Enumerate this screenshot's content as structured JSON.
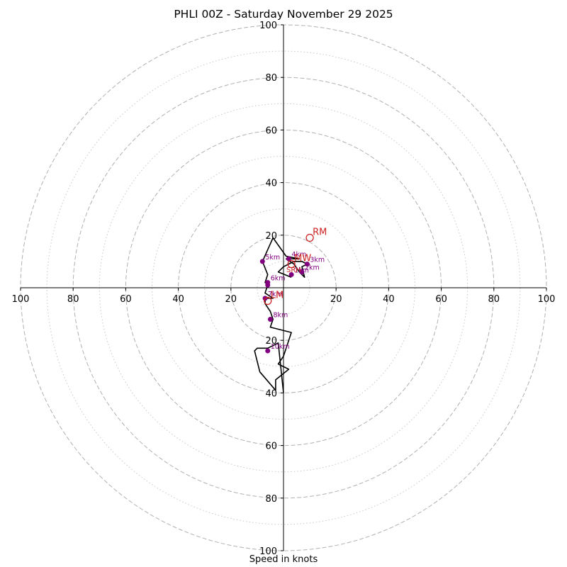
{
  "chart_data": {
    "type": "hodograph",
    "title": "PHLI 00Z - Saturday November 29 2025",
    "xlabel": "Speed in knots",
    "range": 100,
    "colors": {
      "trace": "#000000",
      "height_marker": "#800080",
      "motion": "#cc2222",
      "ring_major": "#b0b0b0",
      "ring_minor": "#c8c8c8"
    },
    "rings_major": [
      20,
      40,
      60,
      80,
      100
    ],
    "rings_minor": [
      10,
      30,
      50,
      70,
      90
    ],
    "x_tick_labels": [
      "100",
      "80",
      "60",
      "40",
      "20",
      "20",
      "40",
      "60",
      "80",
      "100"
    ],
    "y_tick_labels": [
      "100",
      "80",
      "60",
      "40",
      "20",
      "20",
      "40",
      "60",
      "80",
      "100"
    ],
    "x_tick_values": [
      -100,
      -80,
      -60,
      -40,
      -20,
      20,
      40,
      60,
      80,
      100
    ],
    "y_tick_values": [
      100,
      80,
      60,
      40,
      20,
      -20,
      -40,
      -60,
      -80,
      -100
    ],
    "hodograph_trace": [
      {
        "u": 3,
        "v": 4
      },
      {
        "u": -2,
        "v": 6
      },
      {
        "u": 0,
        "v": 8
      },
      {
        "u": 4,
        "v": 10
      },
      {
        "u": 7,
        "v": 10
      },
      {
        "u": 9,
        "v": 9
      },
      {
        "u": 7,
        "v": 8
      },
      {
        "u": 8,
        "v": 4
      },
      {
        "u": 6,
        "v": 6
      },
      {
        "u": 4,
        "v": 9
      },
      {
        "u": 1,
        "v": 11
      },
      {
        "u": 6,
        "v": 11
      },
      {
        "u": 1,
        "v": 12
      },
      {
        "u": -4,
        "v": 19
      },
      {
        "u": -8,
        "v": 10
      },
      {
        "u": -6,
        "v": 5
      },
      {
        "u": -7,
        "v": 2
      },
      {
        "u": -6,
        "v": 1
      },
      {
        "u": -7,
        "v": -2
      },
      {
        "u": -4,
        "v": -4
      },
      {
        "u": -6,
        "v": -4
      },
      {
        "u": -7,
        "v": -4
      },
      {
        "u": -7,
        "v": -6
      },
      {
        "u": -5,
        "v": -9
      },
      {
        "u": -4,
        "v": -12
      },
      {
        "u": -5,
        "v": -15
      },
      {
        "u": 3,
        "v": -17
      },
      {
        "u": 2,
        "v": -20
      },
      {
        "u": 0,
        "v": -26
      },
      {
        "u": -2,
        "v": -29
      },
      {
        "u": 2,
        "v": -31
      },
      {
        "u": -3,
        "v": -35
      },
      {
        "u": -3,
        "v": -39
      },
      {
        "u": -9,
        "v": -32
      },
      {
        "u": -11,
        "v": -24
      },
      {
        "u": -10,
        "v": -23
      },
      {
        "u": -6,
        "v": -23
      },
      {
        "u": -2,
        "v": -21
      },
      {
        "u": 0,
        "v": -40
      }
    ],
    "height_markers": [
      {
        "label": "1km",
        "u": 3,
        "v": 5
      },
      {
        "label": "2km",
        "u": 7,
        "v": 6
      },
      {
        "label": "3km",
        "u": 9,
        "v": 9
      },
      {
        "label": "4km",
        "u": 2,
        "v": 11
      },
      {
        "label": "5km",
        "u": -8,
        "v": 10
      },
      {
        "label": "6km",
        "u": -6,
        "v": 2
      },
      {
        "label": "",
        "u": -6,
        "v": 1
      },
      {
        "label": "7km",
        "u": -7,
        "v": -4
      },
      {
        "label": "8km",
        "u": -5,
        "v": -12
      },
      {
        "label": "10km",
        "u": -6,
        "v": -24
      }
    ],
    "storm_motion": [
      {
        "label": "RM",
        "u": 10,
        "v": 19
      },
      {
        "label": "LM",
        "u": -6,
        "v": -5
      },
      {
        "label": "MW",
        "u": 3,
        "v": 9
      }
    ],
    "annotations": [
      {
        "label": "SRH",
        "u": 0,
        "v": 7
      }
    ]
  }
}
